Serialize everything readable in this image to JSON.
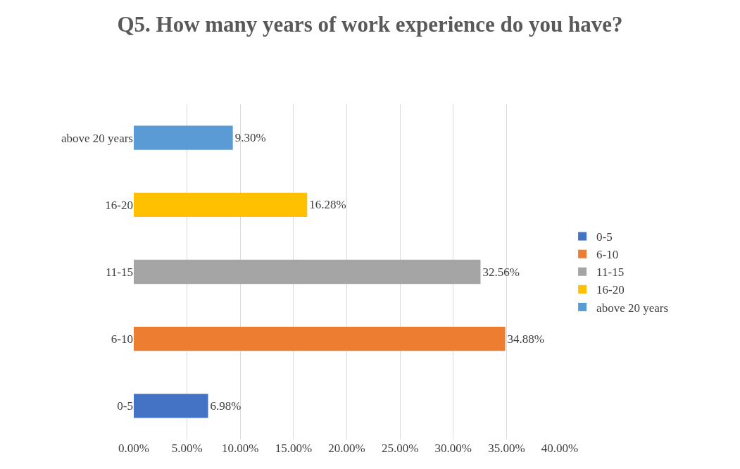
{
  "chart_data": {
    "type": "bar",
    "orientation": "horizontal",
    "title": "Q5. How many years of work experience do you have?",
    "categories": [
      "above 20 years",
      "16-20",
      "11-15",
      "6-10",
      "0-5"
    ],
    "series": [
      {
        "name": "0-5",
        "color": "#4472c4",
        "values": [
          null,
          null,
          null,
          null,
          6.98
        ],
        "value_labels": [
          null,
          null,
          null,
          null,
          "6.98%"
        ]
      },
      {
        "name": "6-10",
        "color": "#ed7d31",
        "values": [
          null,
          null,
          null,
          34.88,
          null
        ],
        "value_labels": [
          null,
          null,
          null,
          "34.88%",
          null
        ]
      },
      {
        "name": "11-15",
        "color": "#a5a5a5",
        "values": [
          null,
          null,
          32.56,
          null,
          null
        ],
        "value_labels": [
          null,
          null,
          "32.56%",
          null,
          null
        ]
      },
      {
        "name": "16-20",
        "color": "#ffc000",
        "values": [
          null,
          16.28,
          null,
          null,
          null
        ],
        "value_labels": [
          null,
          "16.28%",
          null,
          null,
          null
        ]
      },
      {
        "name": "above 20 years",
        "color": "#5b9bd5",
        "values": [
          9.3,
          null,
          null,
          null,
          null
        ],
        "value_labels": [
          "9.30%",
          null,
          null,
          null,
          null
        ]
      }
    ],
    "xlim": [
      0,
      40
    ],
    "xticks": [
      {
        "value": 0,
        "label": "0.00%"
      },
      {
        "value": 5,
        "label": "5.00%"
      },
      {
        "value": 10,
        "label": "10.00%"
      },
      {
        "value": 15,
        "label": "15.00%"
      },
      {
        "value": 20,
        "label": "20.00%"
      },
      {
        "value": 25,
        "label": "25.00%"
      },
      {
        "value": 30,
        "label": "30.00%"
      },
      {
        "value": 35,
        "label": "35.00%"
      },
      {
        "value": 40,
        "label": "40.00%"
      }
    ],
    "grid": "x",
    "legend": "right"
  }
}
